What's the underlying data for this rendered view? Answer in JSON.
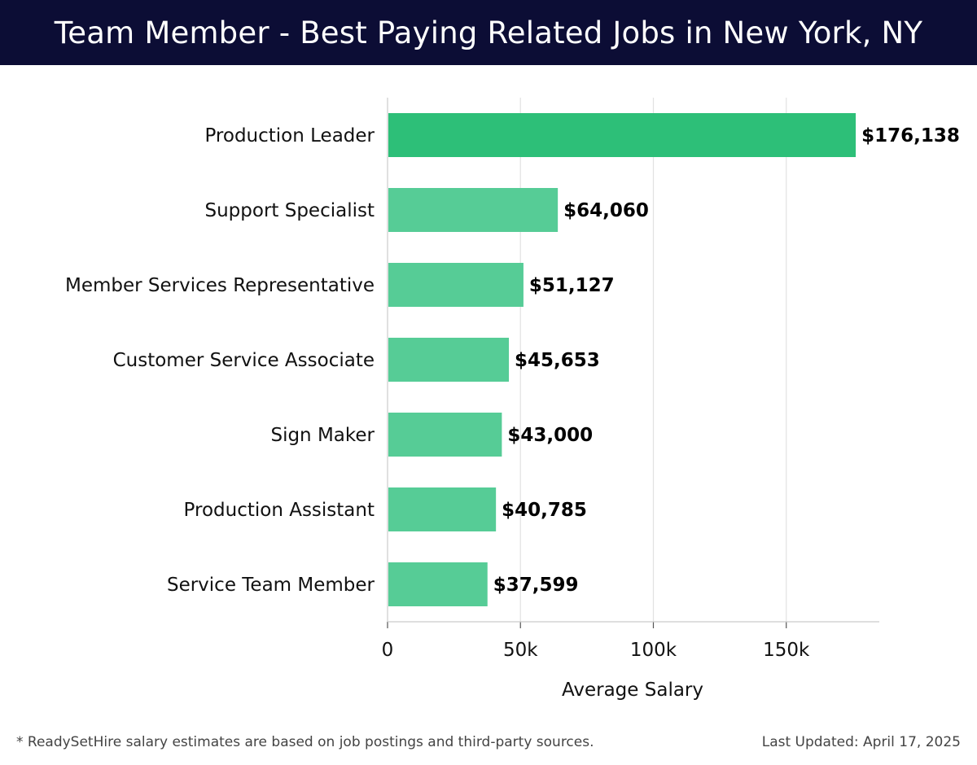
{
  "header": {
    "title": "Team Member - Best Paying Related Jobs in New York, NY"
  },
  "colors": {
    "header_bg": "#0c0d35",
    "highlight_bar": "#2dbf78",
    "bar": "#56cc96",
    "grid": "#e2e2e2"
  },
  "chart_data": {
    "type": "bar",
    "orientation": "horizontal",
    "categories": [
      "Production Leader",
      "Support Specialist",
      "Member Services Representative",
      "Customer Service Associate",
      "Sign Maker",
      "Production Assistant",
      "Service Team Member"
    ],
    "values": [
      176138,
      64060,
      51127,
      45653,
      43000,
      40785,
      37599
    ],
    "value_labels": [
      "$176,138",
      "$64,060",
      "$51,127",
      "$45,653",
      "$43,000",
      "$40,785",
      "$37,599"
    ],
    "xlabel": "Average Salary",
    "ylabel": "",
    "xlim": [
      0,
      185000
    ],
    "ticks": [
      0,
      50000,
      100000,
      150000
    ],
    "tick_labels": [
      "0",
      "50k",
      "100k",
      "150k"
    ],
    "grid": true
  },
  "footer": {
    "note": "* ReadySetHire salary estimates are based on job postings and third-party sources.",
    "updated": "Last Updated: April 17, 2025"
  }
}
